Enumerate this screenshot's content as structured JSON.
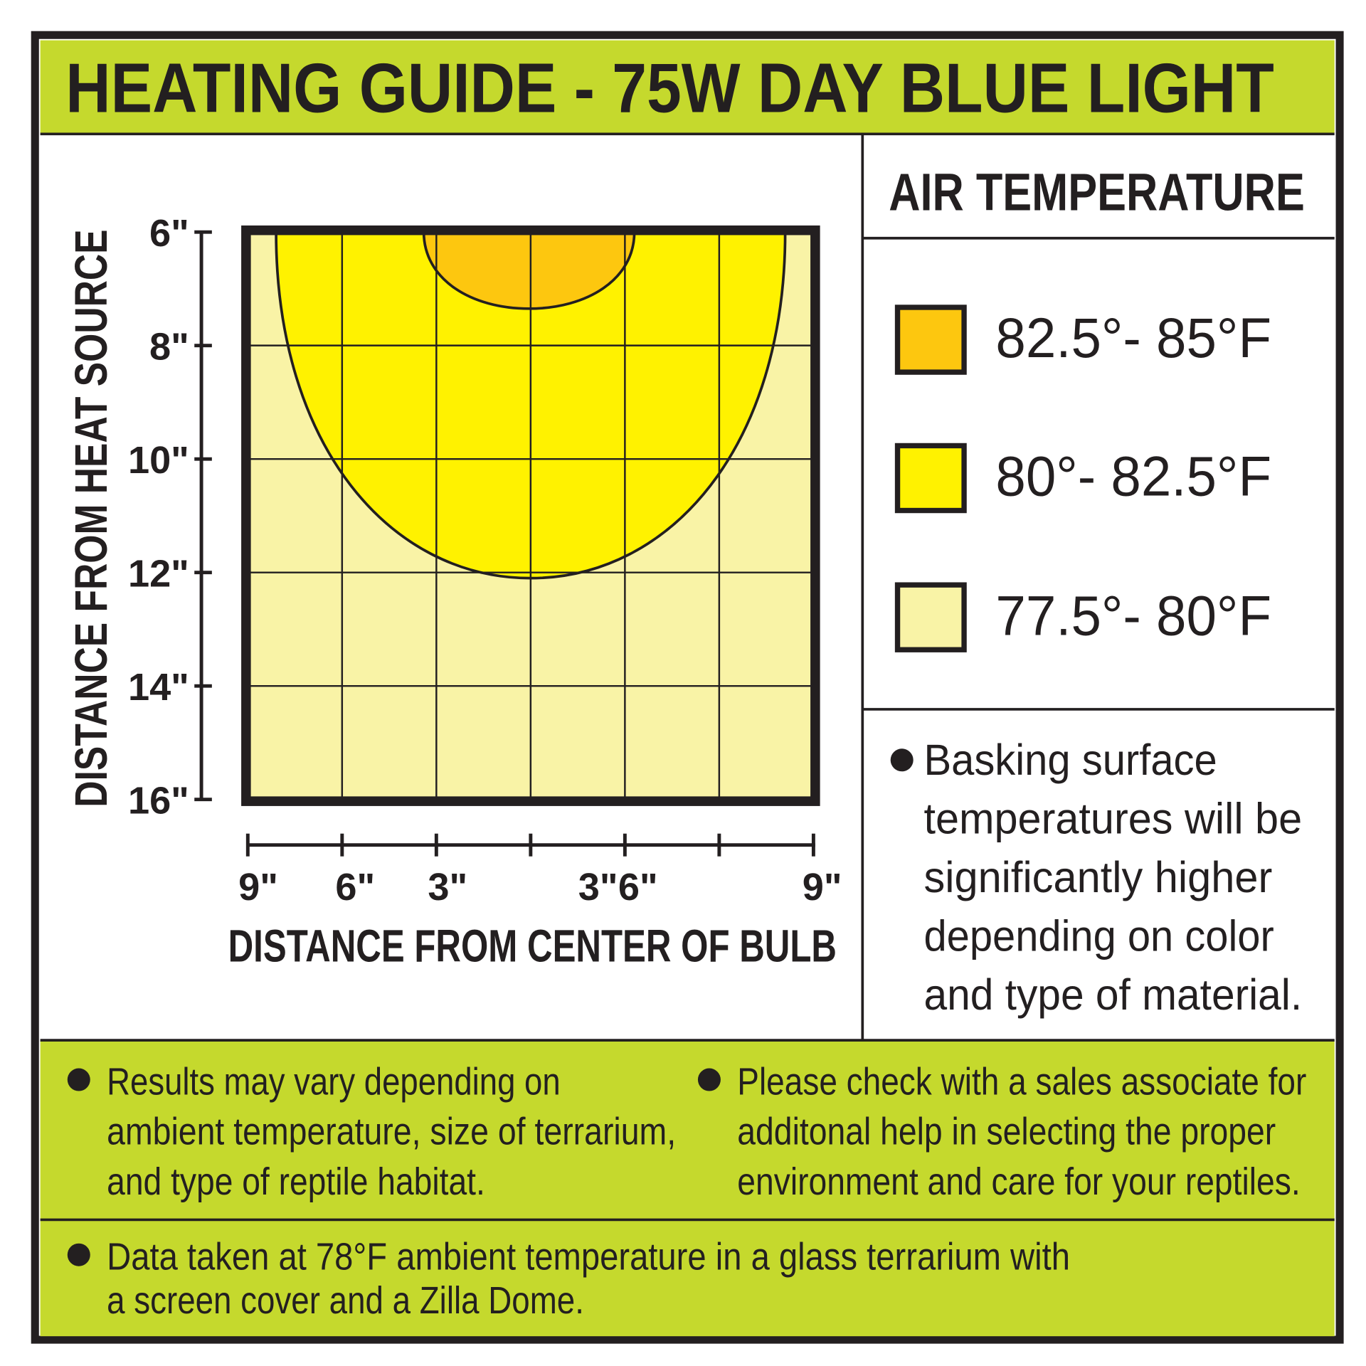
{
  "title": "HEATING GUIDE - 75W DAY BLUE LIGHT",
  "colors": {
    "green": "#c5d92d",
    "orange": "#fdc70f",
    "yellow": "#fff200",
    "pale": "#f9f3a6",
    "ink": "#231f20"
  },
  "chart_data": {
    "type": "heatmap",
    "xlabel": "DISTANCE FROM CENTER OF BULB",
    "ylabel": "DISTANCE FROM HEAT SOURCE",
    "x_unit": "inches",
    "y_unit": "inches",
    "xlim": [
      -9,
      9
    ],
    "ylim": [
      6,
      16
    ],
    "y_inverted": true,
    "grid": true,
    "x_ticks": [
      -9,
      -6,
      -3,
      3,
      6,
      9
    ],
    "x_tick_labels": [
      "9\"",
      "6\"",
      "3\"",
      "3\"",
      "6\"",
      "9\""
    ],
    "x_tick_positions": [
      -9,
      -6,
      -3,
      0,
      3,
      6,
      9
    ],
    "y_ticks": [
      6,
      8,
      10,
      12,
      14,
      16
    ],
    "y_tick_labels": [
      "6\"",
      "8\"",
      "10\"",
      "12\"",
      "14\"",
      "16\""
    ],
    "legend_title": "AIR TEMPERATURE",
    "legend_placement": "right",
    "zones": [
      {
        "name": "82.5°- 85°F",
        "color": "#fdc70f",
        "x_range_at_top": [
          -3.4,
          3.3
        ],
        "max_distance": 7.35
      },
      {
        "name": "80°- 82.5°F",
        "color": "#fff200",
        "x_range_at_top": [
          -8.1,
          8.1
        ],
        "max_distance": 12.1
      },
      {
        "name": "77.5°- 80°F",
        "color": "#f9f3a6",
        "x_range_at_top": [
          -9,
          9
        ],
        "max_distance": 16
      }
    ]
  },
  "note_basking": [
    "Basking surface",
    "temperatures will be",
    "significantly higher",
    "depending on color",
    "and type of material."
  ],
  "note_results": [
    "Results may vary depending on",
    "ambient temperature, size of terrarium,",
    "and type of reptile habitat."
  ],
  "note_sales": [
    "Please check with a sales associate for",
    "additonal help in selecting the proper",
    "environment and care for your reptiles."
  ],
  "note_data": [
    "Data taken at 78°F ambient temperature in a glass terrarium with",
    "a screen cover and a Zilla Dome."
  ]
}
